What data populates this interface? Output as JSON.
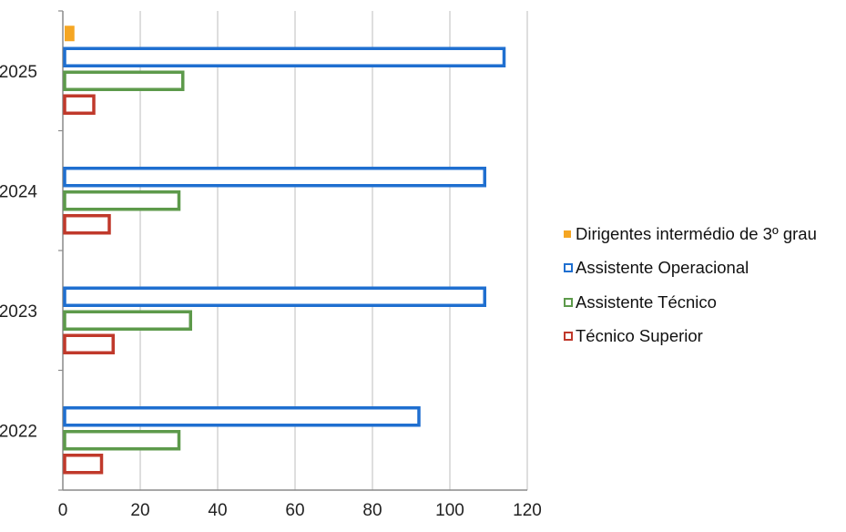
{
  "chart_data": {
    "type": "bar",
    "orientation": "horizontal",
    "categories": [
      "2022",
      "2023",
      "2024",
      "2025"
    ],
    "series": [
      {
        "name": "Dirigentes intermédio de 3º grau",
        "color": "#f5a623",
        "fill": "#f5a623",
        "values": [
          0,
          0,
          0,
          3
        ]
      },
      {
        "name": "Assistente Operacional",
        "color": "#1f6fd0",
        "fill": "#ffffff",
        "values": [
          92,
          109,
          109,
          114
        ]
      },
      {
        "name": "Assistente Técnico",
        "color": "#5d9a4b",
        "fill": "#ffffff",
        "values": [
          30,
          33,
          30,
          31
        ]
      },
      {
        "name": "Técnico Superior",
        "color": "#c0392b",
        "fill": "#ffffff",
        "values": [
          10,
          13,
          12,
          8
        ]
      }
    ],
    "x_ticks": [
      "0",
      "20",
      "40",
      "60",
      "80",
      "100",
      "120"
    ],
    "xlim": [
      0,
      120
    ],
    "grid": true,
    "legend_position": "right"
  }
}
